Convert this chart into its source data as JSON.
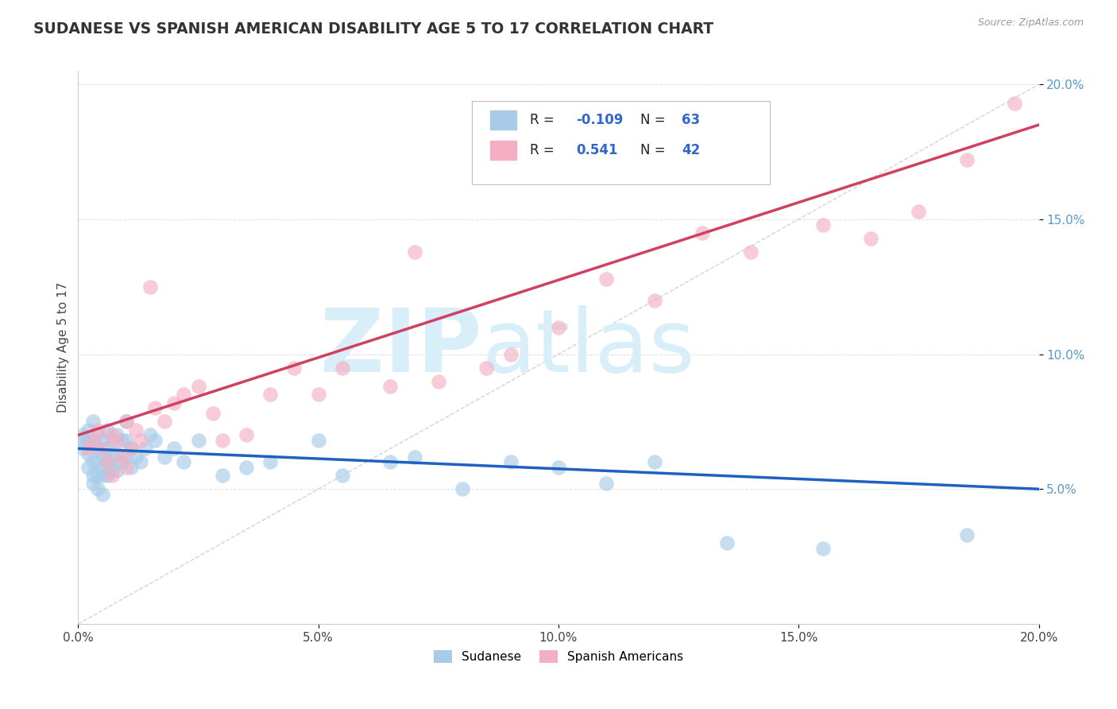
{
  "title": "SUDANESE VS SPANISH AMERICAN DISABILITY AGE 5 TO 17 CORRELATION CHART",
  "source": "Source: ZipAtlas.com",
  "ylabel": "Disability Age 5 to 17",
  "xlim": [
    0.0,
    0.2
  ],
  "ylim": [
    0.0,
    0.205
  ],
  "xticks": [
    0.0,
    0.05,
    0.1,
    0.15,
    0.2
  ],
  "yticks": [
    0.05,
    0.1,
    0.15,
    0.2
  ],
  "ytick_labels": [
    "5.0%",
    "10.0%",
    "15.0%",
    "20.0%"
  ],
  "xtick_labels": [
    "0.0%",
    "5.0%",
    "10.0%",
    "15.0%",
    "20.0%"
  ],
  "sudanese_color": "#a8cce8",
  "spanish_color": "#f4afc4",
  "blue_line_color": "#2060c0",
  "pink_line_color": "#d04060",
  "diagonal_color": "#c8c8c8",
  "watermark_zip": "ZIP",
  "watermark_atlas": "atlas",
  "watermark_color": "#d8eef8",
  "background_color": "#ffffff",
  "blue_line_start_y": 0.065,
  "blue_line_end_y": 0.05,
  "pink_line_start_y": 0.07,
  "pink_line_end_y": 0.185,
  "sudanese_x": [
    0.001,
    0.001,
    0.001,
    0.002,
    0.002,
    0.002,
    0.002,
    0.003,
    0.003,
    0.003,
    0.003,
    0.003,
    0.004,
    0.004,
    0.004,
    0.004,
    0.004,
    0.005,
    0.005,
    0.005,
    0.005,
    0.005,
    0.006,
    0.006,
    0.006,
    0.006,
    0.007,
    0.007,
    0.007,
    0.008,
    0.008,
    0.008,
    0.009,
    0.009,
    0.01,
    0.01,
    0.01,
    0.011,
    0.011,
    0.012,
    0.013,
    0.014,
    0.015,
    0.016,
    0.018,
    0.02,
    0.022,
    0.025,
    0.03,
    0.035,
    0.04,
    0.05,
    0.055,
    0.065,
    0.07,
    0.08,
    0.09,
    0.1,
    0.11,
    0.12,
    0.135,
    0.155,
    0.185
  ],
  "sudanese_y": [
    0.07,
    0.068,
    0.065,
    0.072,
    0.068,
    0.063,
    0.058,
    0.075,
    0.068,
    0.06,
    0.055,
    0.052,
    0.07,
    0.065,
    0.06,
    0.055,
    0.05,
    0.068,
    0.063,
    0.058,
    0.055,
    0.048,
    0.072,
    0.065,
    0.06,
    0.055,
    0.068,
    0.062,
    0.057,
    0.07,
    0.063,
    0.057,
    0.068,
    0.06,
    0.075,
    0.068,
    0.062,
    0.065,
    0.058,
    0.062,
    0.06,
    0.065,
    0.07,
    0.068,
    0.062,
    0.065,
    0.06,
    0.068,
    0.055,
    0.058,
    0.06,
    0.068,
    0.055,
    0.06,
    0.062,
    0.05,
    0.06,
    0.058,
    0.052,
    0.06,
    0.03,
    0.028,
    0.033
  ],
  "spanish_x": [
    0.002,
    0.003,
    0.004,
    0.005,
    0.006,
    0.007,
    0.007,
    0.008,
    0.009,
    0.01,
    0.01,
    0.011,
    0.012,
    0.013,
    0.015,
    0.016,
    0.018,
    0.02,
    0.022,
    0.025,
    0.028,
    0.03,
    0.035,
    0.04,
    0.045,
    0.05,
    0.055,
    0.065,
    0.07,
    0.075,
    0.085,
    0.09,
    0.1,
    0.11,
    0.12,
    0.13,
    0.14,
    0.155,
    0.165,
    0.175,
    0.185,
    0.195
  ],
  "spanish_y": [
    0.065,
    0.068,
    0.072,
    0.065,
    0.06,
    0.07,
    0.055,
    0.068,
    0.062,
    0.075,
    0.058,
    0.065,
    0.072,
    0.068,
    0.125,
    0.08,
    0.075,
    0.082,
    0.085,
    0.088,
    0.078,
    0.068,
    0.07,
    0.085,
    0.095,
    0.085,
    0.095,
    0.088,
    0.138,
    0.09,
    0.095,
    0.1,
    0.11,
    0.128,
    0.12,
    0.145,
    0.138,
    0.148,
    0.143,
    0.153,
    0.172,
    0.193
  ]
}
